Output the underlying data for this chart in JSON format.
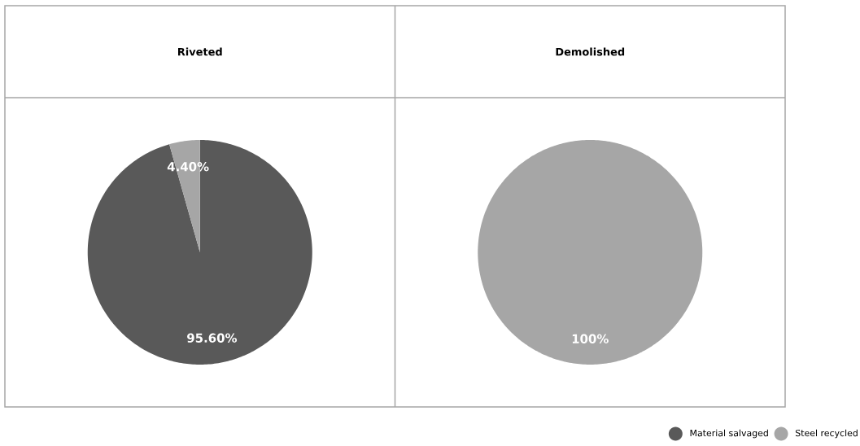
{
  "chart_data": [
    {
      "type": "pie",
      "title": "Riveted",
      "categories": [
        "Material salvaged",
        "Steel recycled"
      ],
      "values": [
        95.6,
        4.4
      ],
      "colors": [
        "#595959",
        "#a6a6a6"
      ],
      "value_labels": [
        "95.60%",
        "4.40%"
      ],
      "legend": "bottom right"
    },
    {
      "type": "pie",
      "title": "Demolished",
      "categories": [
        null
      ],
      "values": [
        100
      ],
      "colors": [
        "#a6a6a6"
      ],
      "value_labels": [
        "100%"
      ]
    }
  ]
}
